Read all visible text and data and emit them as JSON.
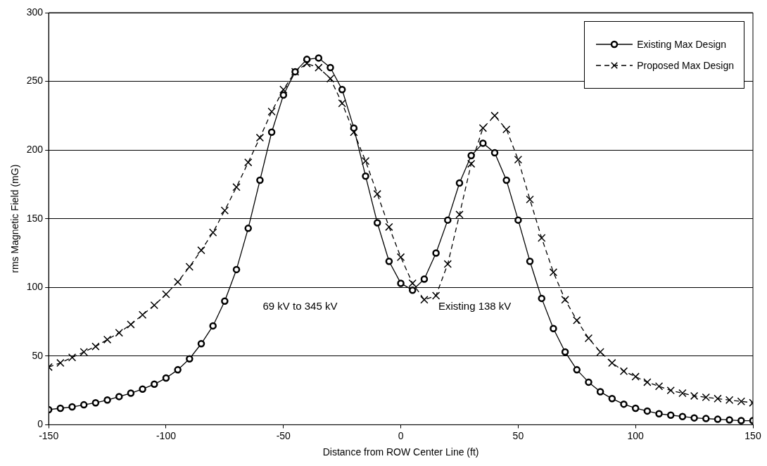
{
  "chart_data": {
    "type": "line",
    "xlabel": "Distance from ROW Center Line (ft)",
    "ylabel": "rms Magnetic Field (mG)",
    "x": [
      -150,
      -145,
      -140,
      -135,
      -130,
      -125,
      -120,
      -115,
      -110,
      -105,
      -100,
      -95,
      -90,
      -85,
      -80,
      -75,
      -70,
      -65,
      -60,
      -55,
      -50,
      -45,
      -40,
      -35,
      -30,
      -25,
      -20,
      -15,
      -10,
      -5,
      0,
      5,
      10,
      15,
      20,
      25,
      30,
      35,
      40,
      45,
      50,
      55,
      60,
      65,
      70,
      75,
      80,
      85,
      90,
      95,
      100,
      105,
      110,
      115,
      120,
      125,
      130,
      135,
      140,
      145,
      150
    ],
    "series": [
      {
        "name": "Existing Max Design",
        "color": "#000000",
        "marker": "circle",
        "line_style": "solid",
        "values": [
          11,
          12,
          13,
          14.5,
          16,
          18,
          20.5,
          23,
          26,
          29.5,
          34,
          40,
          48,
          59,
          72,
          90,
          113,
          143,
          178,
          213,
          240,
          257,
          266,
          267,
          260,
          244,
          216,
          181,
          147,
          119,
          103,
          98,
          106,
          125,
          149,
          176,
          196,
          205,
          198,
          178,
          149,
          119,
          92,
          70,
          53,
          40,
          31,
          24,
          19,
          15,
          12,
          10,
          8,
          7,
          6,
          5,
          4.5,
          4,
          3.5,
          3,
          3
        ]
      },
      {
        "name": "Proposed Max Design",
        "color": "#000000",
        "marker": "cross",
        "line_style": "dashed",
        "values": [
          42,
          45,
          49,
          53,
          57,
          62,
          67,
          73,
          80,
          87,
          95,
          104,
          115,
          127,
          140,
          156,
          173,
          191,
          209,
          228,
          244,
          257,
          263,
          260,
          252,
          234,
          213,
          192,
          168,
          144,
          122,
          103,
          91,
          94,
          117,
          153,
          190,
          216,
          225,
          215,
          193,
          164,
          136,
          111,
          91,
          76,
          63,
          53,
          45,
          39,
          35,
          31,
          28,
          25,
          23,
          21,
          20,
          19,
          18,
          17,
          16
        ]
      }
    ],
    "xlim": [
      -150,
      150
    ],
    "xticks": [
      -150,
      -100,
      -50,
      0,
      50,
      100,
      150
    ],
    "ylim": [
      0,
      300
    ],
    "yticks": [
      0,
      50,
      100,
      150,
      200,
      250,
      300
    ],
    "grid": "y",
    "legend": "top right",
    "annotations": [
      "69 kV to 345 kV",
      "Existing 138 kV"
    ]
  }
}
